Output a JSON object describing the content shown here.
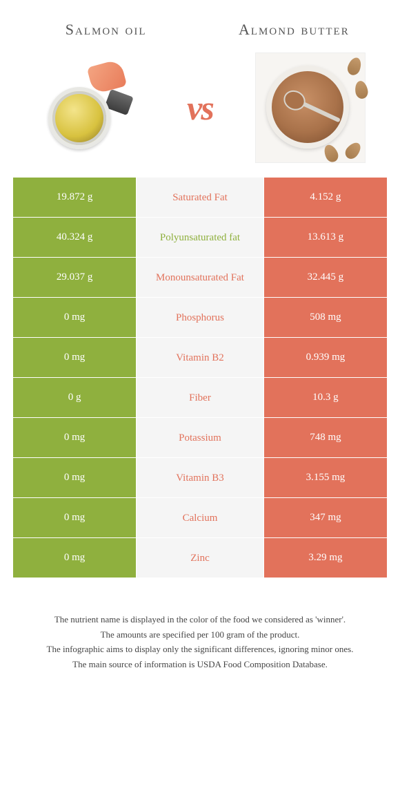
{
  "header": {
    "left_title": "Salmon oil",
    "right_title": "Almond butter",
    "vs_label": "vs"
  },
  "colors": {
    "left_bg": "#8fb03e",
    "right_bg": "#e2725b",
    "mid_bg": "#f5f5f5",
    "left_text": "#ffffff",
    "right_text": "#ffffff",
    "mid_green": "#8fb03e",
    "mid_orange": "#e2725b"
  },
  "rows": [
    {
      "left": "19.872 g",
      "label": "Saturated Fat",
      "winner": "orange",
      "right": "4.152 g"
    },
    {
      "left": "40.324 g",
      "label": "Polyunsaturated fat",
      "winner": "green",
      "right": "13.613 g"
    },
    {
      "left": "29.037 g",
      "label": "Monounsaturated Fat",
      "winner": "orange",
      "right": "32.445 g"
    },
    {
      "left": "0 mg",
      "label": "Phosphorus",
      "winner": "orange",
      "right": "508 mg"
    },
    {
      "left": "0 mg",
      "label": "Vitamin B2",
      "winner": "orange",
      "right": "0.939 mg"
    },
    {
      "left": "0 g",
      "label": "Fiber",
      "winner": "orange",
      "right": "10.3 g"
    },
    {
      "left": "0 mg",
      "label": "Potassium",
      "winner": "orange",
      "right": "748 mg"
    },
    {
      "left": "0 mg",
      "label": "Vitamin B3",
      "winner": "orange",
      "right": "3.155 mg"
    },
    {
      "left": "0 mg",
      "label": "Calcium",
      "winner": "orange",
      "right": "347 mg"
    },
    {
      "left": "0 mg",
      "label": "Zinc",
      "winner": "orange",
      "right": "3.29 mg"
    }
  ],
  "footnotes": {
    "line1": "The nutrient name is displayed in the color of the food we considered as 'winner'.",
    "line2": "The amounts are specified per 100 gram of the product.",
    "line3": "The infographic aims to display only the significant differences, ignoring minor ones.",
    "line4": "The main source of information is USDA Food Composition Database."
  }
}
